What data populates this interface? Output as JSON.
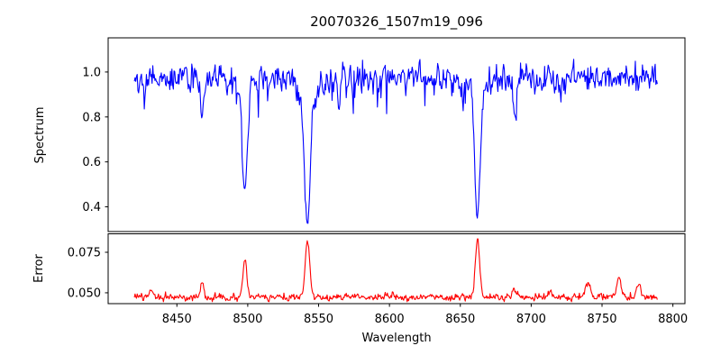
{
  "window": {
    "background": "#ffffff"
  },
  "chart_data": [
    {
      "id": "spectrum",
      "type": "line",
      "kind": "spectrum",
      "title": "20070326_1507m19_096",
      "xlabel": "Wavelength",
      "ylabel": "Spectrum",
      "line_color": "#0000ff",
      "grid": false,
      "legend": null,
      "xlim": [
        8401.5,
        8808.5
      ],
      "ylim": [
        0.29,
        1.152
      ],
      "xticks": [
        8450,
        8500,
        8550,
        8600,
        8650,
        8700,
        8750,
        8800
      ],
      "xtick_labels": [
        "8450",
        "8500",
        "8550",
        "8600",
        "8650",
        "8700",
        "8750",
        "8800"
      ],
      "xtick_labels_visible": false,
      "yticks": [
        0.4,
        0.6,
        0.8,
        1.0
      ],
      "ytick_labels": [
        "0.4",
        "0.6",
        "0.8",
        "1.0"
      ],
      "x_start": 8420,
      "x_end": 8789,
      "x_step": 0.5,
      "continuum": 0.972,
      "noise_sigma": 0.031,
      "ar": 0.3,
      "spike_prob": 0.04,
      "spike_min": 0.03,
      "spike_range": 0.07,
      "clamp_max": 1.112,
      "clamp_min": 0.3,
      "absorption_lines": [
        {
          "center": 8468.0,
          "depth": 0.14,
          "sigma": 1.1
        },
        {
          "center": 8498.0,
          "depth": 0.46,
          "sigma": 1.7
        },
        {
          "center": 8498.0,
          "depth": 0.05,
          "sigma": 5.0
        },
        {
          "center": 8542.1,
          "depth": 0.6,
          "sigma": 2.0
        },
        {
          "center": 8542.1,
          "depth": 0.07,
          "sigma": 6.0
        },
        {
          "center": 8564.5,
          "depth": 0.13,
          "sigma": 1.0
        },
        {
          "center": 8662.1,
          "depth": 0.58,
          "sigma": 1.8
        },
        {
          "center": 8662.1,
          "depth": 0.06,
          "sigma": 5.5
        },
        {
          "center": 8688.6,
          "depth": 0.22,
          "sigma": 1.3
        }
      ]
    },
    {
      "id": "error",
      "type": "line",
      "kind": "error",
      "title": "",
      "xlabel": "Wavelength",
      "ylabel": "Error",
      "line_color": "#ff0000",
      "grid": false,
      "legend": null,
      "xlim": [
        8401.5,
        8808.5
      ],
      "ylim": [
        0.0433,
        0.0864
      ],
      "xticks": [
        8450,
        8500,
        8550,
        8600,
        8650,
        8700,
        8750,
        8800
      ],
      "xtick_labels": [
        "8450",
        "8500",
        "8550",
        "8600",
        "8650",
        "8700",
        "8750",
        "8800"
      ],
      "xtick_labels_visible": true,
      "yticks": [
        0.05,
        0.075
      ],
      "ytick_labels": [
        "0.050",
        "0.075"
      ],
      "x_start": 8420,
      "x_end": 8789,
      "x_step": 0.5,
      "baseline": 0.0472,
      "noise_sigma": 0.0011,
      "ar": 0.3,
      "spike_prob": 0,
      "spike_min": 0,
      "spike_range": 0,
      "clamp_max": 0.0856,
      "clamp_min": 0.0445,
      "peaks": [
        {
          "center": 8432.0,
          "height": 0.0062,
          "sigma": 1.2
        },
        {
          "center": 8468.0,
          "height": 0.0105,
          "sigma": 1.1
        },
        {
          "center": 8498.0,
          "height": 0.0235,
          "sigma": 1.4
        },
        {
          "center": 8542.1,
          "height": 0.0345,
          "sigma": 1.6
        },
        {
          "center": 8662.1,
          "height": 0.0368,
          "sigma": 1.5
        },
        {
          "center": 8688.6,
          "height": 0.0068,
          "sigma": 1.3
        },
        {
          "center": 8713.0,
          "height": 0.0038,
          "sigma": 1.5
        },
        {
          "center": 8740.0,
          "height": 0.01,
          "sigma": 1.4
        },
        {
          "center": 8762.0,
          "height": 0.0135,
          "sigma": 1.6
        },
        {
          "center": 8776.0,
          "height": 0.0095,
          "sigma": 1.3
        }
      ]
    }
  ]
}
